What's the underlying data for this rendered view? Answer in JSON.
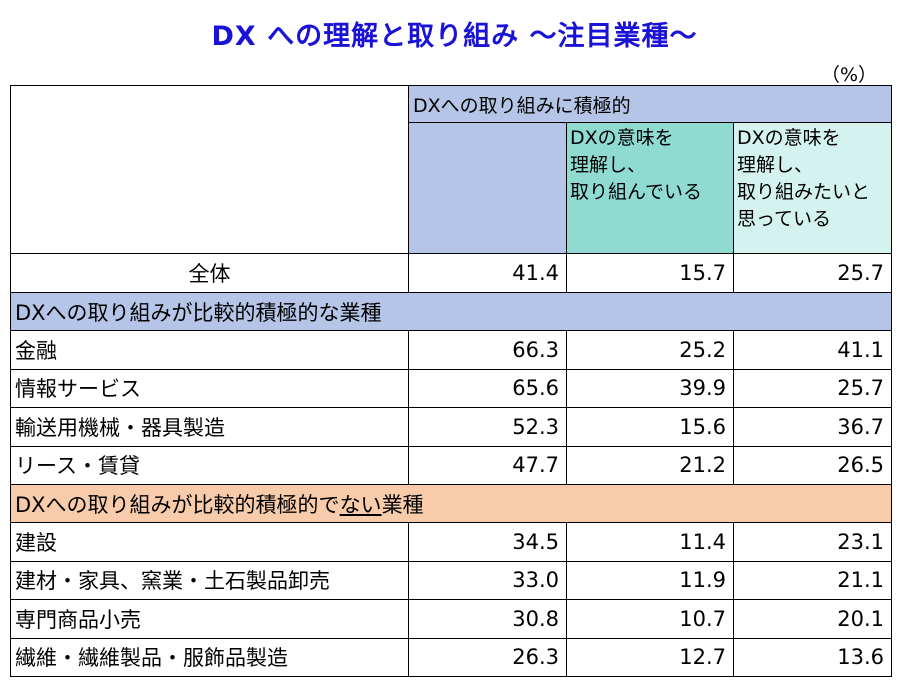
{
  "title": "DX への理解と取り組み ～注目業種～",
  "unit": "（%）",
  "chart_data": {
    "type": "table",
    "columns": [
      "DXへの取り組みに積極的",
      "DXの意味を理解し、取り組んでいる",
      "DXの意味を理解し、取り組みたいと思っている"
    ],
    "header": {
      "group": "DXへの取り組みに積極的",
      "sub1": "DXの意味を\n理解し、\n取り組んでいる",
      "sub2": "DXの意味を\n理解し、\n取り組みたいと\n思っている"
    },
    "total": {
      "label": "全体",
      "values": [
        "41.4",
        "15.7",
        "25.7"
      ]
    },
    "groups": [
      {
        "label_pre": "DXへの取り組みが比較的積極的な業種",
        "label_u": "",
        "label_post": "",
        "rows": [
          {
            "label": "金融",
            "values": [
              "66.3",
              "25.2",
              "41.1"
            ]
          },
          {
            "label": "情報サービス",
            "values": [
              "65.6",
              "39.9",
              "25.7"
            ]
          },
          {
            "label": "輸送用機械・器具製造",
            "values": [
              "52.3",
              "15.6",
              "36.7"
            ]
          },
          {
            "label": "リース・賃貸",
            "values": [
              "47.7",
              "21.2",
              "26.5"
            ]
          }
        ]
      },
      {
        "label_pre": "DXへの取り組みが比較的積極的で",
        "label_u": "ない",
        "label_post": "業種",
        "rows": [
          {
            "label": "建設",
            "values": [
              "34.5",
              "11.4",
              "23.1"
            ]
          },
          {
            "label": "建材・家具、窯業・土石製品卸売",
            "values": [
              "33.0",
              "11.9",
              "21.1"
            ]
          },
          {
            "label": "専門商品小売",
            "values": [
              "30.8",
              "10.7",
              "20.1"
            ]
          },
          {
            "label": "繊維・繊維製品・服飾品製造",
            "values": [
              "26.3",
              "12.7",
              "13.6"
            ]
          }
        ]
      }
    ]
  },
  "colors": {
    "title": "#1a12d6",
    "header_group": "#b5c5e7",
    "header_sub1": "#8fdbd2",
    "header_sub2": "#d4f2ee",
    "section_positive": "#b5c5e7",
    "section_negative": "#f8ccaa"
  }
}
